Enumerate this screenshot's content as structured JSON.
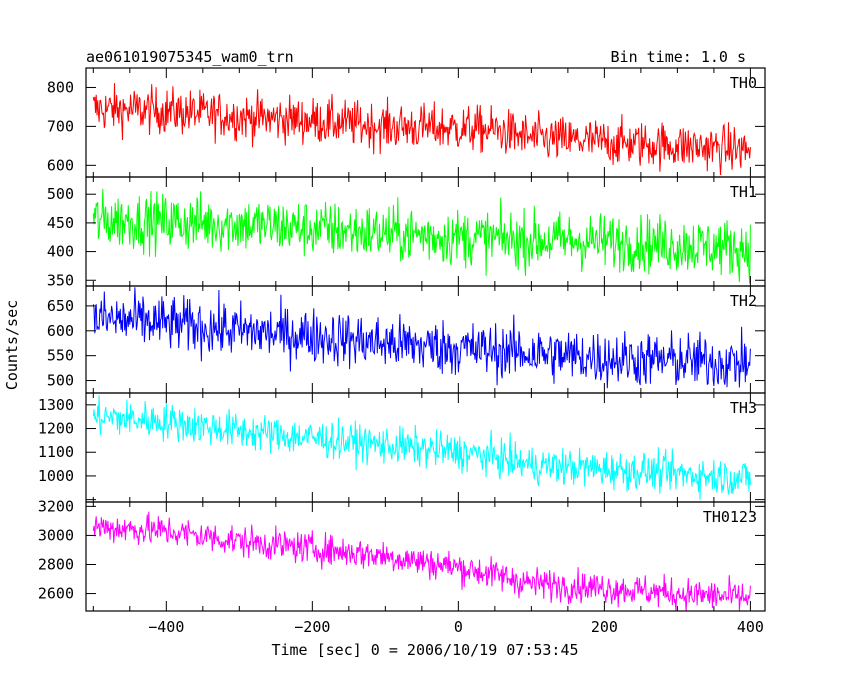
{
  "chart_data": {
    "type": "line",
    "title": "ae061019075345_wam0_trn",
    "bin_time_label": "Bin time: 1.0 s",
    "xlabel": "Time [sec] 0 = 2006/10/19 07:53:45",
    "ylabel": "Counts/sec",
    "xlim": [
      -510,
      420
    ],
    "x_ticks": [
      -400,
      -200,
      0,
      200,
      400
    ],
    "x_tick_labels": [
      "−400",
      "−200",
      "0",
      "200",
      "400"
    ],
    "x_range": [
      -500,
      400
    ],
    "bin_time": 1.0,
    "series": [
      {
        "name": "TH0",
        "color": "#ff0000",
        "ylim": [
          570,
          850
        ],
        "y_ticks": [
          600,
          700,
          800
        ],
        "trend_x": [
          -500,
          -400,
          -300,
          -200,
          -100,
          0,
          50,
          100,
          200,
          300,
          400
        ],
        "trend_y": [
          745,
          740,
          725,
          715,
          700,
          695,
          690,
          670,
          660,
          650,
          640
        ],
        "noise": 30
      },
      {
        "name": "TH1",
        "color": "#00ff00",
        "ylim": [
          340,
          530
        ],
        "y_ticks": [
          350,
          400,
          450,
          500
        ],
        "trend_x": [
          -500,
          -400,
          -300,
          -200,
          -100,
          0,
          100,
          200,
          300,
          400
        ],
        "trend_y": [
          455,
          452,
          448,
          440,
          432,
          425,
          420,
          418,
          412,
          405
        ],
        "noise": 25
      },
      {
        "name": "TH2",
        "color": "#0000ff",
        "ylim": [
          475,
          690
        ],
        "y_ticks": [
          500,
          550,
          600,
          650
        ],
        "trend_x": [
          -500,
          -400,
          -300,
          -200,
          -100,
          0,
          100,
          200,
          300,
          400
        ],
        "trend_y": [
          625,
          615,
          600,
          590,
          575,
          565,
          555,
          545,
          540,
          535
        ],
        "noise": 28
      },
      {
        "name": "TH3",
        "color": "#00ffff",
        "ylim": [
          890,
          1350
        ],
        "y_ticks": [
          900,
          1000,
          1100,
          1200,
          1300
        ],
        "y_tick_labels_hidden": [
          900
        ],
        "trend_x": [
          -500,
          -400,
          -300,
          -200,
          -100,
          0,
          50,
          100,
          200,
          300,
          400
        ],
        "trend_y": [
          1250,
          1230,
          1190,
          1160,
          1130,
          1100,
          1080,
          1045,
          1030,
          1010,
          990
        ],
        "noise": 40
      },
      {
        "name": "TH0123",
        "color": "#ff00ff",
        "ylim": [
          2480,
          3230
        ],
        "y_ticks": [
          2600,
          2800,
          3000,
          3200
        ],
        "trend_x": [
          -500,
          -400,
          -300,
          -200,
          -100,
          0,
          50,
          100,
          200,
          300,
          400
        ],
        "trend_y": [
          3060,
          3030,
          2960,
          2910,
          2860,
          2780,
          2730,
          2670,
          2640,
          2600,
          2570
        ],
        "noise": 55
      }
    ]
  }
}
